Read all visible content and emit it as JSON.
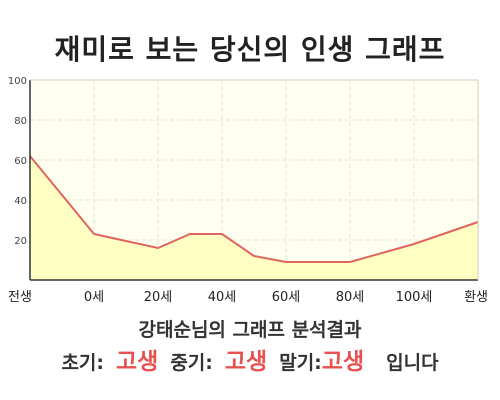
{
  "chart_data": {
    "type": "area",
    "title": "재미로 보는 당신의 인생 그래프",
    "categories": [
      "전생",
      "0세",
      "20세",
      "40세",
      "60세",
      "80세",
      "100세",
      "환생"
    ],
    "series": [
      {
        "x": [
          -20,
          0,
          20,
          30,
          40,
          50,
          60,
          80,
          100,
          120
        ],
        "values": [
          62,
          23,
          16,
          23,
          23,
          12,
          9,
          9,
          18,
          29
        ]
      }
    ],
    "ylim": [
      0,
      100
    ],
    "yticks": [
      20,
      40,
      60,
      80,
      100
    ],
    "grid": true,
    "colors": {
      "line": "#e0645f",
      "fill": "#ffffc4",
      "plot_bg": "#fffff0",
      "grid": "#e6e6d2",
      "axis": "#333333"
    }
  },
  "summary": {
    "text": "강태순님의 그래프 분석결과"
  },
  "result": {
    "early_label": "초기:",
    "early_value": "고생",
    "middle_label": "중기:",
    "middle_value": "고생",
    "late_label": "말기:",
    "late_value": "고생",
    "ending": "입니다",
    "value_color": "#e8514f"
  }
}
